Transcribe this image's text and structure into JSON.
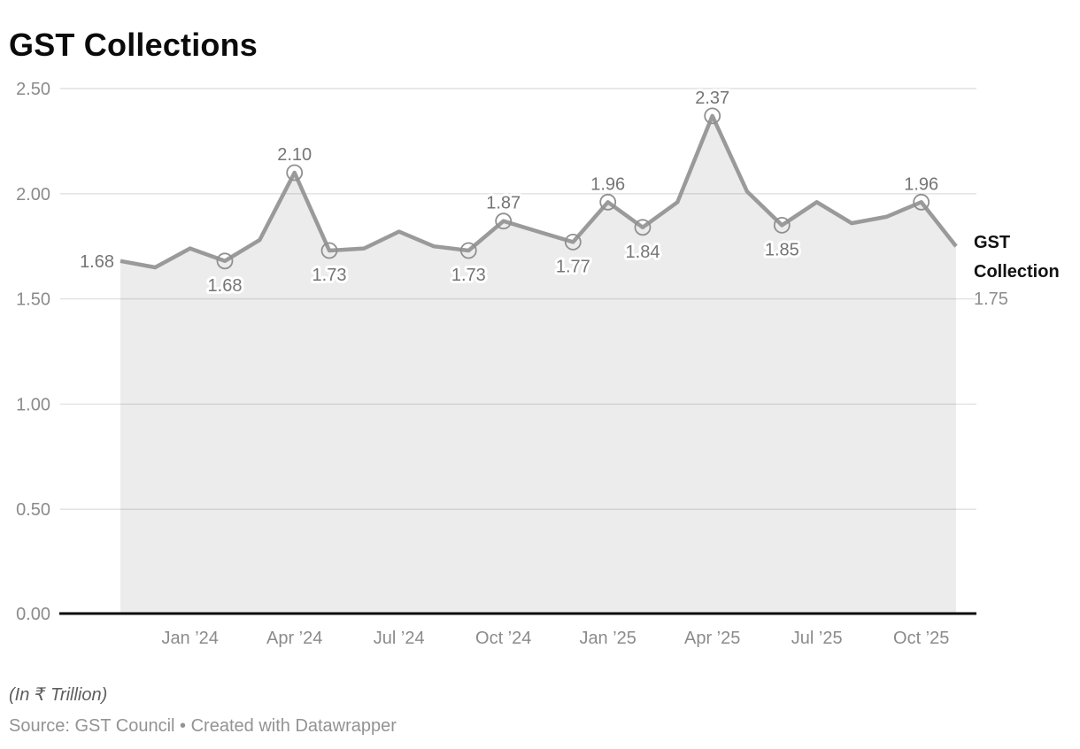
{
  "title": "GST Collections",
  "footer": {
    "unit_note": "(In ₹ Trillion)",
    "source": "Source: GST Council • Created with Datawrapper"
  },
  "end_label": {
    "name": "GST Collection",
    "value": "1.75"
  },
  "colors": {
    "line": "#9a9a9a",
    "marker_stroke": "#909090",
    "area": "rgba(0,0,0,0.075)",
    "grid": "#e1e1e1",
    "baseline": "#0a0a0a",
    "tick_text": "#8b8b8b",
    "data_label_text": "#757575",
    "title_text": "#0b0b0b",
    "end_name_text": "#111111",
    "end_value_text": "#8d8d8d"
  },
  "chart_data": {
    "type": "area",
    "title": "GST Collections",
    "unit": "₹ Trillion",
    "x": [
      "Nov ’23",
      "Dec ’23",
      "Jan ’24",
      "Feb ’24",
      "Mar ’24",
      "Apr ’24",
      "May ’24",
      "Jun ’24",
      "Jul ’24",
      "Aug ’24",
      "Sep ’24",
      "Oct ’24",
      "Nov ’24",
      "Dec ’24",
      "Jan ’25",
      "Feb ’25",
      "Mar ’25",
      "Apr ’25",
      "May ’25",
      "Jun ’25",
      "Jul ’25",
      "Aug ’25",
      "Sep ’25",
      "Oct ’25",
      "Nov ’25"
    ],
    "series": [
      {
        "name": "GST Collection",
        "values": [
          1.68,
          1.65,
          1.74,
          1.68,
          1.78,
          2.1,
          1.73,
          1.74,
          1.82,
          1.75,
          1.73,
          1.87,
          1.82,
          1.77,
          1.96,
          1.84,
          1.96,
          2.37,
          2.01,
          1.85,
          1.96,
          1.86,
          1.89,
          1.96,
          1.75
        ]
      }
    ],
    "ylim": [
      0,
      2.5
    ],
    "y_tick_labels": [
      "0.00",
      "0.50",
      "1.00",
      "1.50",
      "2.00",
      "2.50"
    ],
    "y_tick_values": [
      0,
      0.5,
      1.0,
      1.5,
      2.0,
      2.5
    ],
    "x_tick_labels": [
      "Jan ’24",
      "Apr ’24",
      "Jul ’24",
      "Oct ’24",
      "Jan ’25",
      "Apr ’25",
      "Jul ’25",
      "Oct ’25"
    ],
    "grid": "horizontal",
    "legend_position": "end-of-line",
    "labeled_points": [
      {
        "index": 0,
        "label": "1.68",
        "placement": "left",
        "marker": false
      },
      {
        "index": 3,
        "label": "1.68",
        "placement": "below",
        "marker": true
      },
      {
        "index": 5,
        "label": "2.10",
        "placement": "above",
        "marker": true
      },
      {
        "index": 6,
        "label": "1.73",
        "placement": "below",
        "marker": true
      },
      {
        "index": 10,
        "label": "1.73",
        "placement": "below",
        "marker": true
      },
      {
        "index": 11,
        "label": "1.87",
        "placement": "above",
        "marker": true
      },
      {
        "index": 13,
        "label": "1.77",
        "placement": "below",
        "marker": true
      },
      {
        "index": 14,
        "label": "1.96",
        "placement": "above",
        "marker": true
      },
      {
        "index": 15,
        "label": "1.84",
        "placement": "below",
        "marker": true
      },
      {
        "index": 17,
        "label": "2.37",
        "placement": "above",
        "marker": true
      },
      {
        "index": 19,
        "label": "1.85",
        "placement": "below",
        "marker": true
      },
      {
        "index": 23,
        "label": "1.96",
        "placement": "above",
        "marker": true
      },
      {
        "index": 24,
        "label": "1.75",
        "placement": "end",
        "marker": false
      }
    ]
  }
}
